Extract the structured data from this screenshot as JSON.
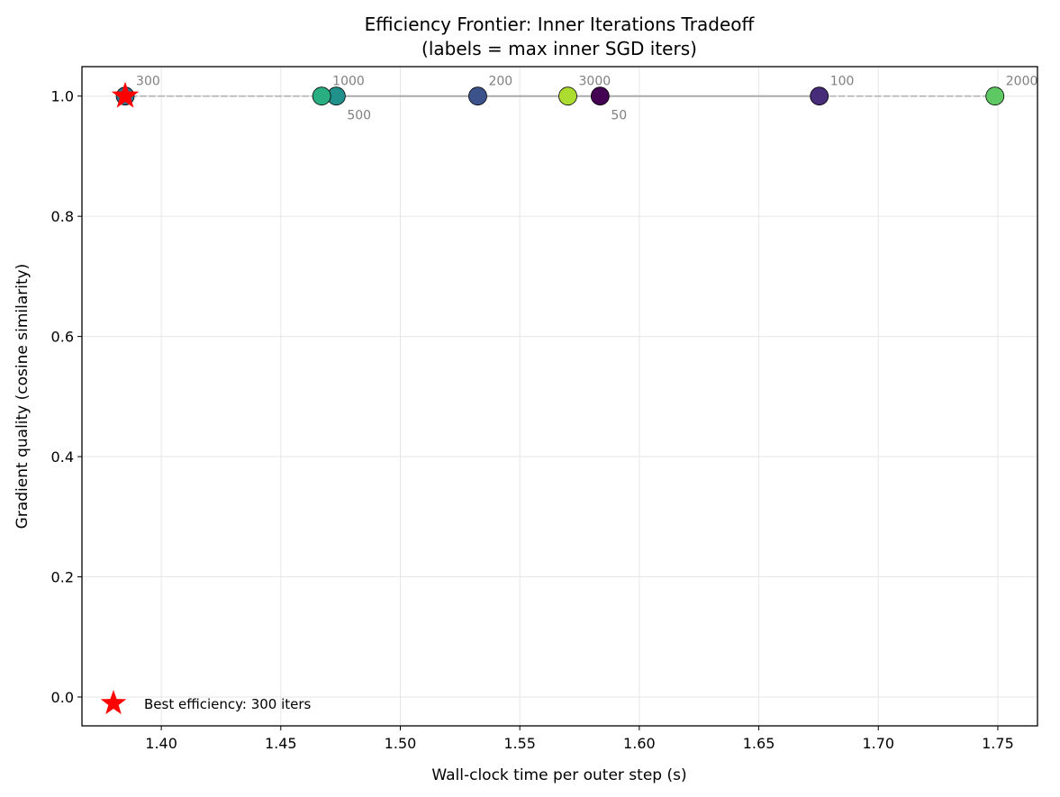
{
  "chart_data": {
    "type": "scatter",
    "title": "Efficiency Frontier: Inner Iterations Tradeoff",
    "subtitle": "(labels = max inner SGD iters)",
    "xlabel": "Wall-clock time per outer step (s)",
    "ylabel": "Gradient quality (cosine similarity)",
    "xlim": [
      1.3668,
      1.7666
    ],
    "ylim": [
      -0.048,
      1.049
    ],
    "xticks": [
      "1.40",
      "1.45",
      "1.50",
      "1.55",
      "1.60",
      "1.65",
      "1.70",
      "1.75"
    ],
    "yticks": [
      "0.0",
      "0.2",
      "0.4",
      "0.6",
      "0.8",
      "1.0"
    ],
    "grid": true,
    "points": [
      {
        "label": "50",
        "x": 1.5836,
        "y": 1.0,
        "color": "#440154"
      },
      {
        "label": "100",
        "x": 1.6753,
        "y": 1.0,
        "color": "#472c7a"
      },
      {
        "label": "200",
        "x": 1.5324,
        "y": 1.0,
        "color": "#3b528b"
      },
      {
        "label": "300",
        "x": 1.3849,
        "y": 1.0,
        "color": "#2c728e"
      },
      {
        "label": "500",
        "x": 1.4732,
        "y": 1.0,
        "color": "#21918c"
      },
      {
        "label": "1000",
        "x": 1.4671,
        "y": 1.0,
        "color": "#28ae80"
      },
      {
        "label": "2000",
        "x": 1.7488,
        "y": 1.0,
        "color": "#5ec962"
      },
      {
        "label": "3000",
        "x": 1.5701,
        "y": 1.0,
        "color": "#addc30"
      }
    ],
    "frontier": [
      "500",
      "200",
      "3000",
      "50",
      "100"
    ],
    "best": {
      "label": "300",
      "x": 1.3849,
      "y": 1.0,
      "color": "#ff0000"
    },
    "legend": {
      "entries": [
        "Best efficiency: 300 iters"
      ],
      "placement": "lower-left"
    }
  }
}
